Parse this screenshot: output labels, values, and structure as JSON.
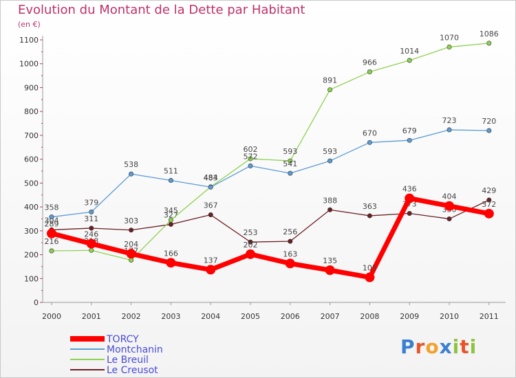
{
  "header": {
    "title": "Evolution du Montant de la Dette par Habitant",
    "subtitle": "(en €)"
  },
  "logo": {
    "text": "Proxiti",
    "letters": [
      "P",
      "r",
      "o",
      "x",
      "i",
      "t",
      "i"
    ]
  },
  "chart_data": {
    "type": "line",
    "title": "Evolution du Montant de la Dette par Habitant",
    "subtitle": "(en €)",
    "xlabel": "",
    "ylabel": "",
    "x": [
      "2000",
      "2001",
      "2002",
      "2003",
      "2004",
      "2005",
      "2006",
      "2007",
      "2008",
      "2009",
      "2010",
      "2011"
    ],
    "ylim": [
      0,
      1100
    ],
    "yticks": [
      0,
      100,
      200,
      300,
      400,
      500,
      600,
      700,
      800,
      900,
      1000,
      1100
    ],
    "grid": false,
    "legend_position": "bottom-left",
    "series": [
      {
        "name": "Le Creusot",
        "color": "#6b1f24",
        "values": [
          304,
          311,
          303,
          327,
          367,
          253,
          256,
          388,
          363,
          373,
          350,
          429
        ]
      },
      {
        "name": "Le Breuil",
        "color": "#8ed14f",
        "values": [
          216,
          218,
          177,
          345,
          484,
          602,
          593,
          891,
          966,
          1014,
          1070,
          1086
        ]
      },
      {
        "name": "Montchanin",
        "color": "#5a9bd4",
        "values": [
          358,
          379,
          538,
          511,
          483,
          572,
          541,
          593,
          670,
          679,
          723,
          720
        ]
      },
      {
        "name": "TORCY",
        "color": "#ff0000",
        "values": [
          289,
          246,
          204,
          166,
          137,
          202,
          163,
          135,
          105,
          436,
          404,
          372
        ]
      }
    ],
    "legend": [
      "TORCY",
      "Montchanin",
      "Le Breuil",
      "Le Creusot"
    ]
  }
}
